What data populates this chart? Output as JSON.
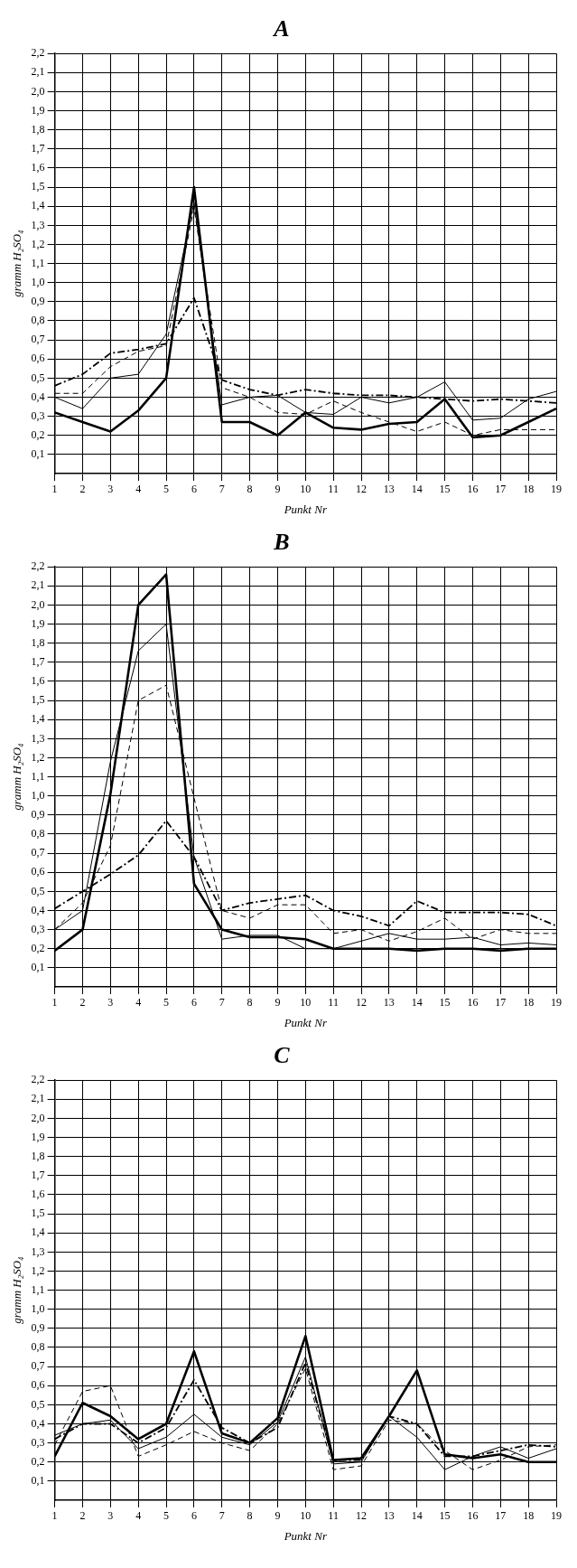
{
  "chart_data": [
    {
      "type": "line",
      "title": "A",
      "xlabel": "Punkt Nr",
      "ylabel": "gramm H₂SO₄",
      "x": [
        1,
        2,
        3,
        4,
        5,
        6,
        7,
        8,
        9,
        10,
        11,
        12,
        13,
        14,
        15,
        16,
        17,
        18,
        19
      ],
      "xlim": [
        1,
        19
      ],
      "xticks": [
        1,
        2,
        3,
        4,
        5,
        6,
        7,
        8,
        9,
        10,
        11,
        12,
        13,
        14,
        15,
        16,
        17,
        18,
        19
      ],
      "ylim": [
        0,
        2.2
      ],
      "yticks": [
        {
          "value": 0.1,
          "label": "0,1"
        },
        {
          "value": 0.2,
          "label": "0,2"
        },
        {
          "value": 0.3,
          "label": "0,3"
        },
        {
          "value": 0.4,
          "label": "0,4"
        },
        {
          "value": 0.5,
          "label": "0,5"
        },
        {
          "value": 0.6,
          "label": "0,6"
        },
        {
          "value": 0.7,
          "label": "0,7"
        },
        {
          "value": 0.8,
          "label": "0,8"
        },
        {
          "value": 0.9,
          "label": "0,9"
        },
        {
          "value": 1.0,
          "label": "1,0"
        },
        {
          "value": 1.1,
          "label": "1,1"
        },
        {
          "value": 1.2,
          "label": "1,2"
        },
        {
          "value": 1.3,
          "label": "1,3"
        },
        {
          "value": 1.4,
          "label": "1,4"
        },
        {
          "value": 1.5,
          "label": "1,5"
        },
        {
          "value": 1.6,
          "label": "1,6"
        },
        {
          "value": 1.7,
          "label": "1,7"
        },
        {
          "value": 1.8,
          "label": "1,8"
        },
        {
          "value": 1.9,
          "label": "1,9"
        },
        {
          "value": 2.0,
          "label": "2,0"
        },
        {
          "value": 2.1,
          "label": "2,1"
        },
        {
          "value": 2.2,
          "label": "2,2"
        }
      ],
      "grid": true,
      "legend": false,
      "marker": "none",
      "series": [
        {
          "color": "#000000",
          "line_style": "solid",
          "values": [
            0.32,
            0.27,
            0.22,
            0.33,
            0.5,
            1.5,
            0.27,
            0.27,
            0.2,
            0.32,
            0.24,
            0.23,
            0.26,
            0.27,
            0.39,
            0.19,
            0.2,
            0.27,
            0.34
          ]
        },
        {
          "color": "#000000",
          "line_style": "solid",
          "values": [
            0.4,
            0.34,
            0.5,
            0.52,
            0.73,
            1.42,
            0.36,
            0.4,
            0.41,
            0.32,
            0.31,
            0.4,
            0.37,
            0.4,
            0.48,
            0.28,
            0.29,
            0.39,
            0.43
          ]
        },
        {
          "color": "#000000",
          "line_style": "dashed",
          "values": [
            0.42,
            0.42,
            0.56,
            0.64,
            0.67,
            1.39,
            0.45,
            0.4,
            0.32,
            0.31,
            0.38,
            0.32,
            0.27,
            0.22,
            0.27,
            0.2,
            0.23,
            0.23,
            0.23
          ]
        },
        {
          "color": "#000000",
          "line_style": "dashdot",
          "values": [
            0.46,
            0.52,
            0.63,
            0.65,
            0.68,
            0.92,
            0.49,
            0.44,
            0.41,
            0.44,
            0.42,
            0.41,
            0.41,
            0.4,
            0.39,
            0.38,
            0.39,
            0.38,
            0.37
          ]
        }
      ]
    },
    {
      "type": "line",
      "title": "B",
      "xlabel": "Punkt Nr",
      "ylabel": "gramm H₂SO₄",
      "x": [
        1,
        2,
        3,
        4,
        5,
        6,
        7,
        8,
        9,
        10,
        11,
        12,
        13,
        14,
        15,
        16,
        17,
        18,
        19
      ],
      "xlim": [
        1,
        19
      ],
      "xticks": [
        1,
        2,
        3,
        4,
        5,
        6,
        7,
        8,
        9,
        10,
        11,
        12,
        13,
        14,
        15,
        16,
        17,
        18,
        19
      ],
      "ylim": [
        0,
        2.2
      ],
      "yticks": [
        {
          "value": 0.1,
          "label": "0,1"
        },
        {
          "value": 0.2,
          "label": "0,2"
        },
        {
          "value": 0.3,
          "label": "0,3"
        },
        {
          "value": 0.4,
          "label": "0,4"
        },
        {
          "value": 0.5,
          "label": "0,5"
        },
        {
          "value": 0.6,
          "label": "0,6"
        },
        {
          "value": 0.7,
          "label": "0,7"
        },
        {
          "value": 0.8,
          "label": "0,8"
        },
        {
          "value": 0.9,
          "label": "0,9"
        },
        {
          "value": 1.0,
          "label": "1,0"
        },
        {
          "value": 1.1,
          "label": "1,1"
        },
        {
          "value": 1.2,
          "label": "1,2"
        },
        {
          "value": 1.3,
          "label": "1,3"
        },
        {
          "value": 1.4,
          "label": "1,4"
        },
        {
          "value": 1.5,
          "label": "1,5"
        },
        {
          "value": 1.6,
          "label": "1,6"
        },
        {
          "value": 1.7,
          "label": "1,7"
        },
        {
          "value": 1.8,
          "label": "1,8"
        },
        {
          "value": 1.9,
          "label": "1,9"
        },
        {
          "value": 2.0,
          "label": "2,0"
        },
        {
          "value": 2.1,
          "label": "2,1"
        },
        {
          "value": 2.2,
          "label": "2,2"
        }
      ],
      "grid": true,
      "legend": false,
      "marker": "none",
      "series": [
        {
          "color": "#000000",
          "line_style": "solid",
          "values": [
            0.19,
            0.3,
            1.01,
            2.0,
            2.16,
            0.54,
            0.3,
            0.26,
            0.26,
            0.25,
            0.2,
            0.2,
            0.2,
            0.19,
            0.2,
            0.2,
            0.19,
            0.2,
            0.2
          ]
        },
        {
          "color": "#000000",
          "line_style": "solid",
          "values": [
            0.3,
            0.4,
            1.18,
            1.76,
            1.9,
            0.68,
            0.25,
            0.27,
            0.27,
            0.2,
            0.2,
            0.24,
            0.28,
            0.25,
            0.25,
            0.26,
            0.22,
            0.23,
            0.22
          ]
        },
        {
          "color": "#000000",
          "line_style": "dashed",
          "values": [
            0.3,
            0.44,
            0.74,
            1.5,
            1.58,
            0.99,
            0.4,
            0.36,
            0.43,
            0.43,
            0.28,
            0.3,
            0.24,
            0.29,
            0.36,
            0.25,
            0.3,
            0.28,
            0.28
          ]
        },
        {
          "color": "#000000",
          "line_style": "dashdot",
          "values": [
            0.41,
            0.5,
            0.59,
            0.69,
            0.87,
            0.68,
            0.4,
            0.44,
            0.46,
            0.48,
            0.4,
            0.37,
            0.32,
            0.45,
            0.39,
            0.39,
            0.39,
            0.38,
            0.32
          ]
        }
      ]
    },
    {
      "type": "line",
      "title": "C",
      "xlabel": "Punkt Nr",
      "ylabel": "gramm H₂SO₄",
      "x": [
        1,
        2,
        3,
        4,
        5,
        6,
        7,
        8,
        9,
        10,
        11,
        12,
        13,
        14,
        15,
        16,
        17,
        18,
        19
      ],
      "xlim": [
        1,
        19
      ],
      "xticks": [
        1,
        2,
        3,
        4,
        5,
        6,
        7,
        8,
        9,
        10,
        11,
        12,
        13,
        14,
        15,
        16,
        17,
        18,
        19
      ],
      "ylim": [
        0,
        2.2
      ],
      "yticks": [
        {
          "value": 0.1,
          "label": "0,1"
        },
        {
          "value": 0.2,
          "label": "0,2"
        },
        {
          "value": 0.3,
          "label": "0,3"
        },
        {
          "value": 0.4,
          "label": "0,4"
        },
        {
          "value": 0.5,
          "label": "0,5"
        },
        {
          "value": 0.6,
          "label": "0,6"
        },
        {
          "value": 0.7,
          "label": "0,7"
        },
        {
          "value": 0.8,
          "label": "0,8"
        },
        {
          "value": 0.9,
          "label": "0,9"
        },
        {
          "value": 1.0,
          "label": "1,0"
        },
        {
          "value": 1.1,
          "label": "1,1"
        },
        {
          "value": 1.2,
          "label": "1,2"
        },
        {
          "value": 1.3,
          "label": "1,3"
        },
        {
          "value": 1.4,
          "label": "1,4"
        },
        {
          "value": 1.5,
          "label": "1,5"
        },
        {
          "value": 1.6,
          "label": "1,6"
        },
        {
          "value": 1.7,
          "label": "1,7"
        },
        {
          "value": 1.8,
          "label": "1,8"
        },
        {
          "value": 1.9,
          "label": "1,9"
        },
        {
          "value": 2.0,
          "label": "2,0"
        },
        {
          "value": 2.1,
          "label": "2,1"
        },
        {
          "value": 2.2,
          "label": "2,2"
        }
      ],
      "grid": true,
      "legend": false,
      "marker": "none",
      "series": [
        {
          "color": "#000000",
          "line_style": "solid",
          "values": [
            0.23,
            0.51,
            0.44,
            0.32,
            0.4,
            0.78,
            0.35,
            0.3,
            0.43,
            0.86,
            0.21,
            0.22,
            0.44,
            0.68,
            0.24,
            0.22,
            0.24,
            0.2,
            0.2
          ]
        },
        {
          "color": "#000000",
          "line_style": "solid",
          "values": [
            0.34,
            0.4,
            0.42,
            0.27,
            0.33,
            0.45,
            0.33,
            0.29,
            0.41,
            0.75,
            0.19,
            0.2,
            0.44,
            0.33,
            0.16,
            0.23,
            0.28,
            0.22,
            0.27
          ]
        },
        {
          "color": "#000000",
          "line_style": "dashed",
          "values": [
            0.29,
            0.57,
            0.6,
            0.23,
            0.29,
            0.36,
            0.3,
            0.26,
            0.4,
            0.69,
            0.16,
            0.18,
            0.42,
            0.4,
            0.26,
            0.16,
            0.21,
            0.28,
            0.29
          ]
        },
        {
          "color": "#000000",
          "line_style": "dashdot",
          "values": [
            0.32,
            0.4,
            0.4,
            0.3,
            0.38,
            0.63,
            0.38,
            0.3,
            0.38,
            0.72,
            0.21,
            0.21,
            0.44,
            0.4,
            0.23,
            0.23,
            0.26,
            0.29,
            0.28
          ]
        }
      ]
    }
  ]
}
